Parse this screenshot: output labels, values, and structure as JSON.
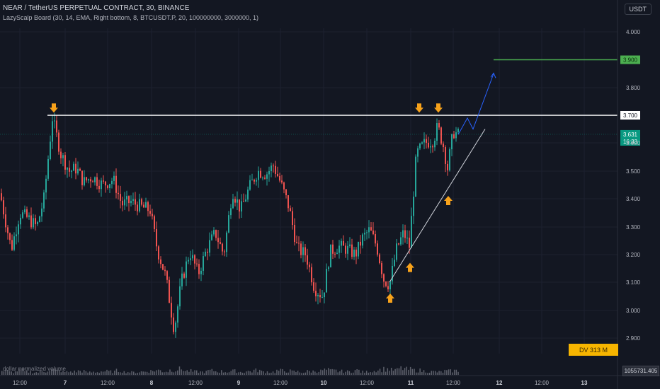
{
  "header": {
    "symbol_line": "NEAR / TetherUS PERPETUAL CONTRACT, 30, BINANCE",
    "indicator_line": "LazyScalp Board (30, 14, EMA, Right bottom, 8, BTCUSDT.P, 20, 100000000, 3000000, 1)",
    "currency": "USDT"
  },
  "volume_pane": {
    "label": "dollar normalized volume",
    "value": "1055731.405"
  },
  "dv_badge": "DV 313 M",
  "colors": {
    "background": "#131722",
    "up": "#26a69a",
    "down": "#ef5350",
    "target": "#4caf50",
    "resistance": "#ffffff",
    "arrow": "#f7a21b",
    "projection": "#2962ff",
    "price_badge": "#089981"
  },
  "chart_data": {
    "type": "candlestick",
    "title": "NEAR / TetherUS PERPETUAL CONTRACT, 30, BINANCE",
    "ylim": [
      2.88,
      4.05
    ],
    "y_ticks": [
      "4.000",
      "3.800",
      "3.600",
      "3.500",
      "3.400",
      "3.300",
      "3.200",
      "3.100",
      "3.000",
      "2.900"
    ],
    "x_ticks": [
      "12:00",
      "7",
      "12:00",
      "8",
      "12:00",
      "9",
      "12:00",
      "10",
      "12:00",
      "11",
      "12:00",
      "12",
      "12:00",
      "13"
    ],
    "price_path": [
      [
        0,
        3.42
      ],
      [
        16,
        3.22
      ],
      [
        28,
        3.35
      ],
      [
        40,
        3.33
      ],
      [
        52,
        3.3
      ],
      [
        62,
        3.4
      ],
      [
        74,
        3.69
      ],
      [
        86,
        3.56
      ],
      [
        98,
        3.5
      ],
      [
        108,
        3.51
      ],
      [
        118,
        3.46
      ],
      [
        130,
        3.48
      ],
      [
        145,
        3.45
      ],
      [
        160,
        3.47
      ],
      [
        172,
        3.38
      ],
      [
        185,
        3.39
      ],
      [
        200,
        3.37
      ],
      [
        212,
        3.36
      ],
      [
        222,
        3.22
      ],
      [
        234,
        3.12
      ],
      [
        246,
        2.93
      ],
      [
        256,
        3.1
      ],
      [
        268,
        3.21
      ],
      [
        280,
        3.13
      ],
      [
        292,
        3.22
      ],
      [
        304,
        3.28
      ],
      [
        316,
        3.2
      ],
      [
        328,
        3.43
      ],
      [
        340,
        3.36
      ],
      [
        352,
        3.44
      ],
      [
        364,
        3.5
      ],
      [
        376,
        3.49
      ],
      [
        386,
        3.52
      ],
      [
        396,
        3.46
      ],
      [
        408,
        3.37
      ],
      [
        420,
        3.22
      ],
      [
        432,
        3.2
      ],
      [
        444,
        3.08
      ],
      [
        456,
        3.05
      ],
      [
        466,
        3.21
      ],
      [
        478,
        3.23
      ],
      [
        490,
        3.22
      ],
      [
        502,
        3.2
      ],
      [
        512,
        3.26
      ],
      [
        522,
        3.29
      ],
      [
        532,
        3.23
      ],
      [
        542,
        3.11
      ],
      [
        550,
        3.09
      ],
      [
        560,
        3.22
      ],
      [
        570,
        3.28
      ],
      [
        578,
        3.23
      ],
      [
        588,
        3.56
      ],
      [
        600,
        3.6
      ],
      [
        612,
        3.61
      ],
      [
        618,
        3.66
      ],
      [
        626,
        3.59
      ],
      [
        632,
        3.51
      ],
      [
        640,
        3.64
      ],
      [
        647,
        3.63
      ]
    ],
    "volume": [
      12,
      9,
      14,
      10,
      8,
      11,
      16,
      13,
      9,
      10,
      12,
      8,
      9,
      11,
      10,
      13,
      9,
      8,
      10,
      12,
      14,
      11,
      15,
      18,
      12,
      10,
      9,
      13,
      11,
      10,
      12,
      9,
      11,
      14,
      10,
      9,
      13,
      12,
      10,
      8,
      11,
      12,
      15,
      13,
      11,
      10,
      14,
      9,
      12,
      16,
      18,
      15,
      20,
      17,
      14,
      12,
      10,
      9,
      12,
      13
    ],
    "last_price": "3.631",
    "countdown": "16:33",
    "price_levels": [
      {
        "label": "3.900",
        "value": 3.9,
        "style": "target"
      },
      {
        "label": "3.700",
        "value": 3.7,
        "style": "resistance"
      }
    ],
    "arrows_down": [
      [
        76,
        3.72
      ],
      [
        592,
        3.72
      ],
      [
        619,
        3.72
      ]
    ],
    "arrows_up": [
      [
        551,
        3.05
      ],
      [
        579,
        3.16
      ],
      [
        633,
        3.4
      ]
    ],
    "trendline": [
      [
        550,
        3.1
      ],
      [
        685,
        3.65
      ]
    ],
    "projection": [
      [
        647,
        3.63
      ],
      [
        660,
        3.69
      ],
      [
        668,
        3.65
      ],
      [
        697,
        3.85
      ]
    ]
  }
}
